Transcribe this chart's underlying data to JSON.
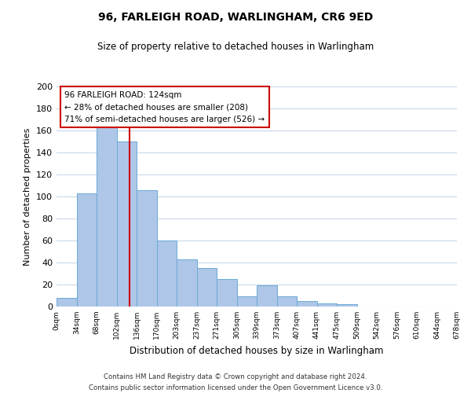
{
  "title": "96, FARLEIGH ROAD, WARLINGHAM, CR6 9ED",
  "subtitle": "Size of property relative to detached houses in Warlingham",
  "xlabel": "Distribution of detached houses by size in Warlingham",
  "ylabel": "Number of detached properties",
  "footer_line1": "Contains HM Land Registry data © Crown copyright and database right 2024.",
  "footer_line2": "Contains public sector information licensed under the Open Government Licence v3.0.",
  "bin_labels": [
    "0sqm",
    "34sqm",
    "68sqm",
    "102sqm",
    "136sqm",
    "170sqm",
    "203sqm",
    "237sqm",
    "271sqm",
    "305sqm",
    "339sqm",
    "373sqm",
    "407sqm",
    "441sqm",
    "475sqm",
    "509sqm",
    "542sqm",
    "576sqm",
    "610sqm",
    "644sqm",
    "678sqm"
  ],
  "bar_heights": [
    8,
    103,
    166,
    150,
    106,
    60,
    43,
    35,
    25,
    9,
    19,
    9,
    5,
    3,
    2,
    0,
    0,
    0,
    0,
    0
  ],
  "bar_color": "#aec6e8",
  "bar_edge_color": "#6aaad4",
  "property_size": 124,
  "property_label": "96 FARLEIGH ROAD: 124sqm",
  "annotation_line1": "← 28% of detached houses are smaller (208)",
  "annotation_line2": "71% of semi-detached houses are larger (526) →",
  "vline_color": "#cc0000",
  "annotation_box_edge": "#cc0000",
  "ylim": [
    0,
    200
  ],
  "yticks": [
    0,
    20,
    40,
    60,
    80,
    100,
    120,
    140,
    160,
    180,
    200
  ],
  "background_color": "#ffffff",
  "grid_color": "#c8d8e8"
}
